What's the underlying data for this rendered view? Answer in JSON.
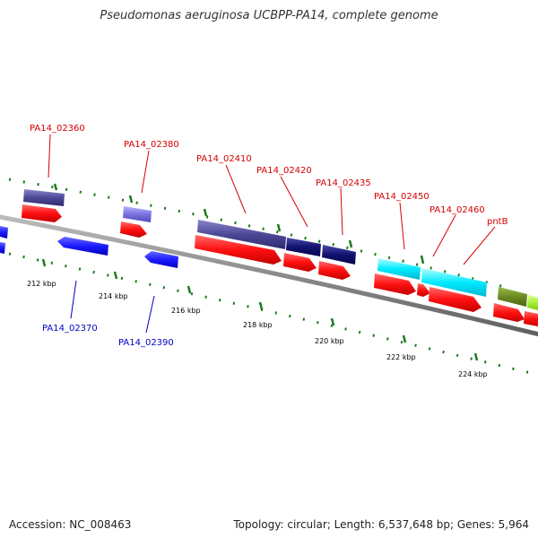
{
  "title": "Pseudomonas aeruginosa UCBPP-PA14, complete genome",
  "footer": {
    "accession": "Accession: NC_008463",
    "topology": "Topology: circular; Length: 6,537,648 bp; Genes: 5,964"
  },
  "colors": {
    "label_forward": "#d40000",
    "label_reverse": "#0000c8",
    "tick": "#1d7a1d",
    "backbone": "#888888"
  },
  "ticks": [
    "212 kbp",
    "214 kbp",
    "216 kbp",
    "218 kbp",
    "220 kbp",
    "222 kbp",
    "224 kbp"
  ],
  "gene_labels_forward": [
    "PA14_02360",
    "PA14_02380",
    "PA14_02410",
    "PA14_02420",
    "PA14_02435",
    "PA14_02450",
    "PA14_02460",
    "pntB"
  ],
  "gene_labels_reverse": [
    "PA14_02370",
    "PA14_02390"
  ]
}
